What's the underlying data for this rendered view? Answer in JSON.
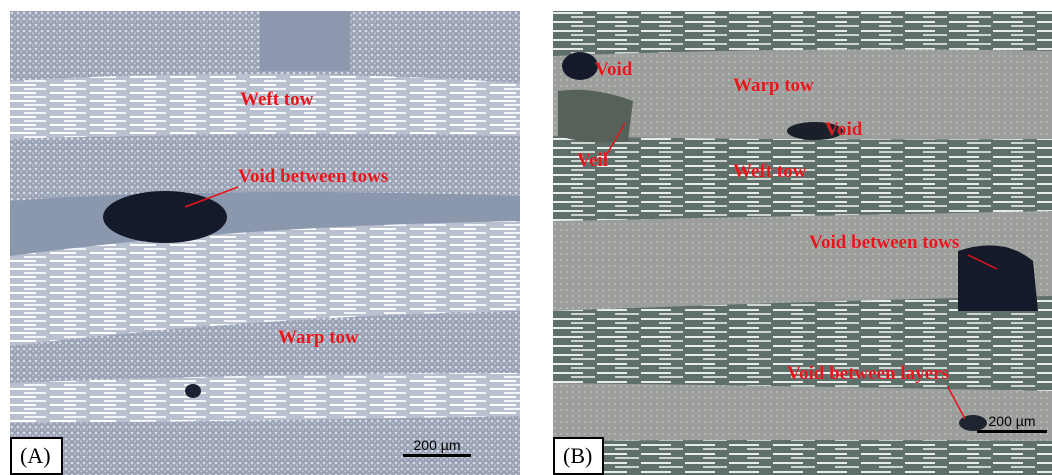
{
  "panels": [
    {
      "tag": "(A)",
      "scale_bar": "200 µm",
      "labels": {
        "weft_tow": "Weft tow",
        "void_between_tows": "Void between tows",
        "warp_tow": "Warp tow"
      }
    },
    {
      "tag": "(B)",
      "scale_bar": "200 µm",
      "labels": {
        "void_top": "Void",
        "warp_tow": "Warp tow",
        "void_mid": "Void",
        "veil": "Veil",
        "weft_tow": "Weft tow",
        "void_between_tows": "Void between tows",
        "void_between_layers": "Void between layers"
      }
    }
  ],
  "colors": {
    "annotation": "#e8141c",
    "void": "#141a2a"
  }
}
